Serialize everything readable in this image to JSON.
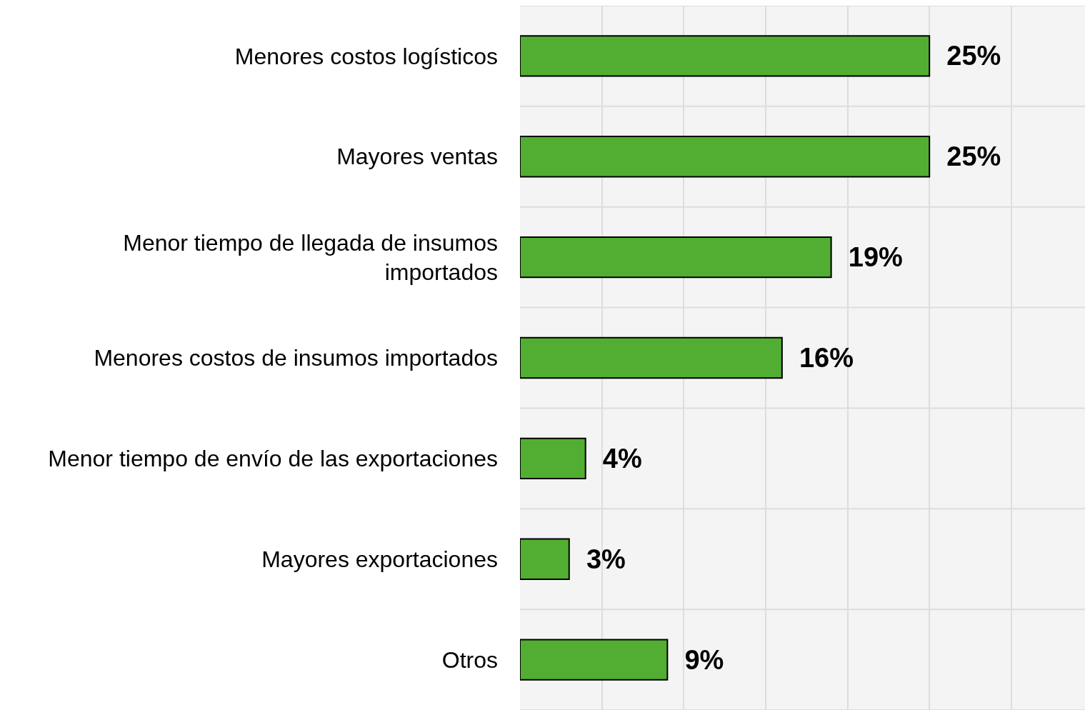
{
  "chart_data": {
    "type": "bar",
    "orientation": "horizontal",
    "categories": [
      "Menores costos logísticos",
      "Mayores ventas",
      "Menor tiempo de llegada de insumos importados",
      "Menores costos de insumos importados",
      "Menor tiempo de envío de las exportaciones",
      "Mayores exportaciones",
      "Otros"
    ],
    "values": [
      25,
      25,
      19,
      16,
      4,
      3,
      9
    ],
    "value_labels": [
      "25%",
      "25%",
      "19%",
      "16%",
      "4%",
      "3%",
      "9%"
    ],
    "color": "#52ae32",
    "xlim": [
      0,
      34.5
    ],
    "xticks": [
      {
        "value": 0,
        "label": null
      },
      {
        "value": 5,
        "label": null
      },
      {
        "value": 10,
        "label": null
      },
      {
        "value": 15,
        "label": null
      },
      {
        "value": 20,
        "label": null
      },
      {
        "value": 25,
        "label": null
      },
      {
        "value": 30,
        "label": null
      }
    ],
    "tick_labels": "y",
    "grid": true
  }
}
